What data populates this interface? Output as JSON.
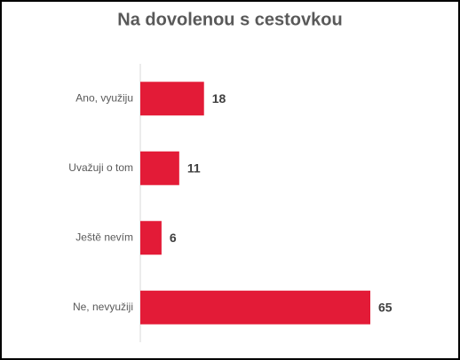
{
  "chart_data": {
    "type": "bar",
    "orientation": "horizontal",
    "title": "Na dovolenou s cestovkou",
    "categories": [
      "Ano, využiju",
      "Uvažuji o tom",
      "Ještě nevím",
      "Ne, nevyužiji"
    ],
    "values": [
      18,
      11,
      6,
      65
    ],
    "color": "#e31b37"
  }
}
